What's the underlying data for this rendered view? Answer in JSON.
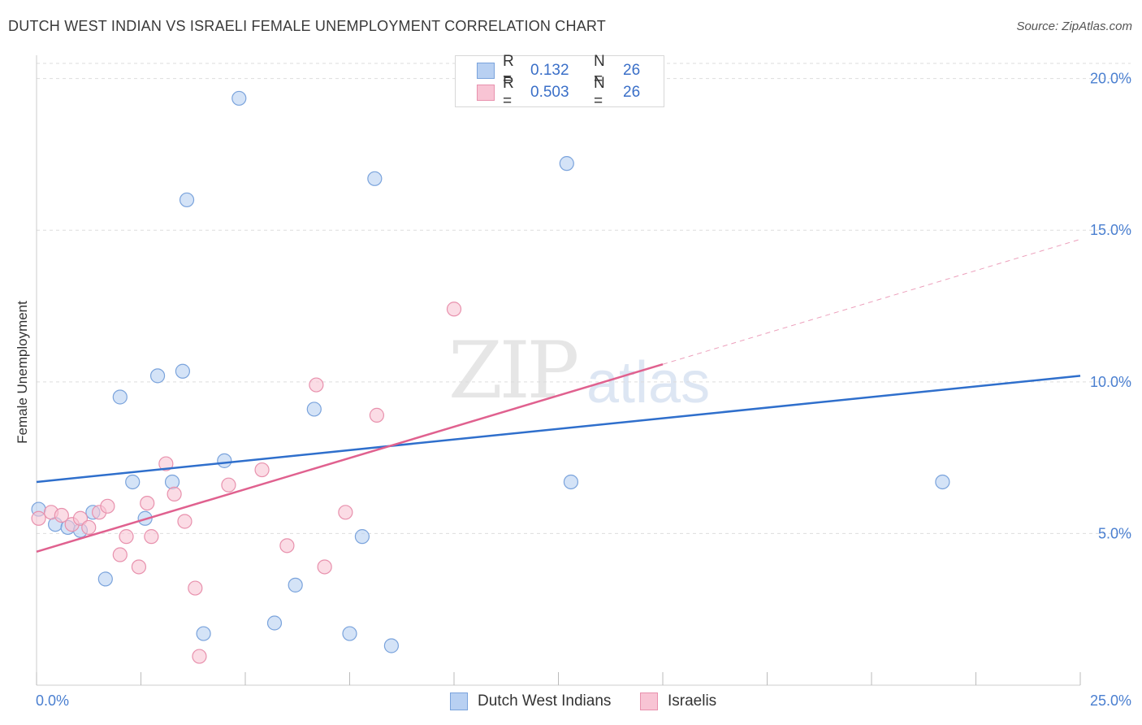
{
  "title": "DUTCH WEST INDIAN VS ISRAELI FEMALE UNEMPLOYMENT CORRELATION CHART",
  "source": "Source: ZipAtlas.com",
  "watermark": {
    "zip": "ZIP",
    "atlas": "atlas"
  },
  "legend_top": {
    "rows": [
      {
        "r_label": "R =",
        "r_value": "0.132",
        "n_label": "N =",
        "n_value": "26"
      },
      {
        "r_label": "R =",
        "r_value": "0.503",
        "n_label": "N =",
        "n_value": "26"
      }
    ]
  },
  "colors": {
    "blue_fill": "#b8d0f2",
    "blue_stroke": "#7aa3dc",
    "blue_line": "#2f6fcc",
    "pink_fill": "#f8c4d4",
    "pink_stroke": "#e891ad",
    "pink_line": "#e0618f",
    "tick_text": "#4a7fd0",
    "grid": "#dddddd"
  },
  "chart_data": {
    "type": "scatter",
    "title": "DUTCH WEST INDIAN VS ISRAELI FEMALE UNEMPLOYMENT CORRELATION CHART",
    "xlabel": "",
    "ylabel": "Female Unemployment",
    "xlim": [
      0,
      25
    ],
    "ylim": [
      0,
      20.5
    ],
    "x_tick_labels": [
      "0.0%",
      "25.0%"
    ],
    "y_ticks": [
      5,
      10,
      15,
      20
    ],
    "y_tick_labels": [
      "5.0%",
      "10.0%",
      "15.0%",
      "20.0%"
    ],
    "legend_position": "bottom",
    "series": [
      {
        "name": "Dutch West Indians",
        "r": 0.132,
        "n": 26,
        "trend": {
          "x0": 0,
          "y0": 6.7,
          "x1": 25,
          "y1": 10.2,
          "dashed_from_x": null
        },
        "points": [
          [
            0.05,
            5.8
          ],
          [
            0.45,
            5.3
          ],
          [
            0.75,
            5.2
          ],
          [
            1.05,
            5.1
          ],
          [
            1.35,
            5.7
          ],
          [
            1.65,
            3.5
          ],
          [
            2.0,
            9.5
          ],
          [
            2.3,
            6.7
          ],
          [
            2.6,
            5.5
          ],
          [
            2.9,
            10.2
          ],
          [
            3.25,
            6.7
          ],
          [
            3.5,
            10.35
          ],
          [
            3.6,
            16.0
          ],
          [
            4.0,
            1.7
          ],
          [
            4.5,
            7.4
          ],
          [
            4.85,
            19.35
          ],
          [
            5.7,
            2.05
          ],
          [
            6.2,
            3.3
          ],
          [
            6.65,
            9.1
          ],
          [
            7.5,
            1.7
          ],
          [
            7.8,
            4.9
          ],
          [
            8.1,
            16.7
          ],
          [
            8.5,
            1.3
          ],
          [
            12.7,
            17.2
          ],
          [
            12.8,
            6.7
          ],
          [
            21.7,
            6.7
          ]
        ]
      },
      {
        "name": "Israelis",
        "r": 0.503,
        "n": 26,
        "trend": {
          "x0": 0,
          "y0": 4.4,
          "x1": 25,
          "y1": 14.7,
          "dashed_from_x": 15.0
        },
        "points": [
          [
            0.05,
            5.5
          ],
          [
            0.35,
            5.7
          ],
          [
            0.6,
            5.6
          ],
          [
            0.85,
            5.3
          ],
          [
            1.05,
            5.5
          ],
          [
            1.25,
            5.2
          ],
          [
            1.5,
            5.7
          ],
          [
            1.7,
            5.9
          ],
          [
            2.0,
            4.3
          ],
          [
            2.15,
            4.9
          ],
          [
            2.45,
            3.9
          ],
          [
            2.65,
            6.0
          ],
          [
            2.75,
            4.9
          ],
          [
            3.1,
            7.3
          ],
          [
            3.3,
            6.3
          ],
          [
            3.55,
            5.4
          ],
          [
            3.8,
            3.2
          ],
          [
            3.9,
            0.95
          ],
          [
            4.6,
            6.6
          ],
          [
            5.4,
            7.1
          ],
          [
            6.0,
            4.6
          ],
          [
            6.7,
            9.9
          ],
          [
            6.9,
            3.9
          ],
          [
            7.4,
            5.7
          ],
          [
            8.15,
            8.9
          ],
          [
            10.0,
            12.4
          ]
        ]
      }
    ]
  }
}
